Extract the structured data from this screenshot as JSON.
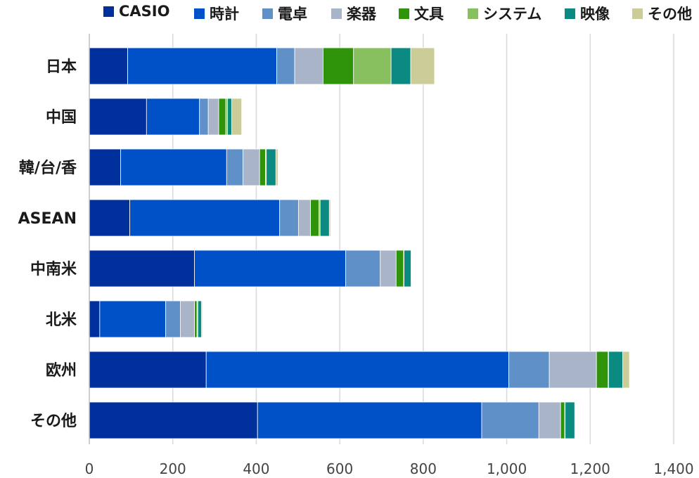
{
  "chart_data": {
    "type": "bar",
    "orientation": "horizontal",
    "stacked": true,
    "categories": [
      "日本",
      "中国",
      "韓/台/香",
      "ASEAN",
      "中南米",
      "北米",
      "欧州",
      "その他"
    ],
    "series": [
      {
        "name": "CASIO",
        "color": "#00309b",
        "values": [
          92,
          137,
          75,
          97,
          252,
          25,
          280,
          403
        ]
      },
      {
        "name": "時計",
        "color": "#0050c8",
        "values": [
          357,
          127,
          254,
          359,
          362,
          158,
          725,
          537
        ]
      },
      {
        "name": "電卓",
        "color": "#6090c8",
        "values": [
          43,
          21,
          39,
          45,
          83,
          35,
          97,
          137
        ]
      },
      {
        "name": "楽器",
        "color": "#a9b4c9",
        "values": [
          68,
          25,
          40,
          29,
          38,
          34,
          113,
          52
        ]
      },
      {
        "name": "文具",
        "color": "#30940a",
        "values": [
          73,
          17,
          14,
          20,
          18,
          6,
          28,
          10
        ]
      },
      {
        "name": "システム",
        "color": "#88c060",
        "values": [
          90,
          4,
          2,
          3,
          1,
          2,
          1,
          1
        ]
      },
      {
        "name": "映像",
        "color": "#0a8a80",
        "values": [
          47,
          10,
          23,
          22,
          17,
          9,
          34,
          23
        ]
      },
      {
        "name": "その他",
        "color": "#cccc98",
        "values": [
          57,
          24,
          5,
          3,
          1,
          2,
          16,
          1
        ]
      }
    ],
    "xlim": [
      0,
      1400
    ],
    "xticks": [
      0,
      200,
      400,
      600,
      800,
      1000,
      1200,
      1400
    ],
    "xtick_labels": [
      "0",
      "200",
      "400",
      "600",
      "800",
      "1,000",
      "1,200",
      "1,400"
    ],
    "grid": true,
    "legend_position": "top"
  }
}
